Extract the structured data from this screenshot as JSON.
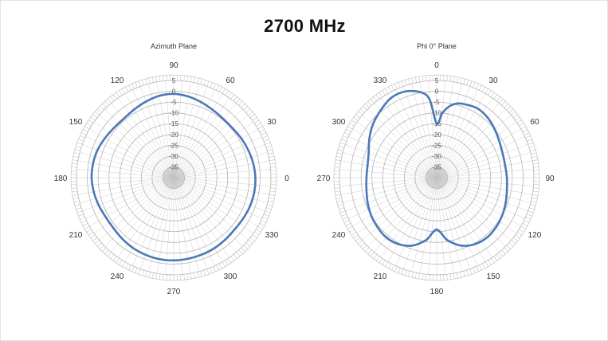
{
  "title": "2700 MHz",
  "colors": {
    "series": "#4a78b8",
    "grid_ring": "#b4b4b4",
    "grid_spoke": "#cfcfcf",
    "center_fill": "#d9d9d9"
  },
  "chart_data": [
    {
      "type": "polar-line",
      "title": "Azimuth Plane",
      "r_ticks": [
        5,
        0,
        -5,
        -10,
        -15,
        -20,
        -25,
        -30,
        -35
      ],
      "rlim": [
        -40,
        5
      ],
      "angle_labels": [
        {
          "angle": 0,
          "label": "0"
        },
        {
          "angle": 30,
          "label": "30"
        },
        {
          "angle": 60,
          "label": "60"
        },
        {
          "angle": 90,
          "label": "90"
        },
        {
          "angle": 120,
          "label": "120"
        },
        {
          "angle": 150,
          "label": "150"
        },
        {
          "angle": 180,
          "label": "180"
        },
        {
          "angle": 210,
          "label": "210"
        },
        {
          "angle": 240,
          "label": "240"
        },
        {
          "angle": 270,
          "label": "270"
        },
        {
          "angle": 300,
          "label": "300"
        },
        {
          "angle": 330,
          "label": "330"
        }
      ],
      "series": [
        {
          "angles": [
            0,
            10,
            20,
            30,
            40,
            50,
            60,
            70,
            80,
            90,
            100,
            110,
            120,
            130,
            140,
            150,
            160,
            170,
            180,
            190,
            200,
            210,
            220,
            230,
            240,
            250,
            260,
            270,
            280,
            290,
            300,
            310,
            320,
            330,
            340,
            350
          ],
          "values": [
            -2.2,
            -2.6,
            -3.2,
            -3.8,
            -4.4,
            -4.4,
            -3.8,
            -2.8,
            -1.8,
            -1.2,
            -1.5,
            -2.5,
            -3.5,
            -4.2,
            -4.0,
            -3.3,
            -2.5,
            -2.1,
            -2.0,
            -2.4,
            -3.0,
            -3.6,
            -3.6,
            -3.0,
            -2.4,
            -2.0,
            -1.7,
            -1.7,
            -1.9,
            -2.1,
            -2.3,
            -2.7,
            -3.0,
            -2.7,
            -2.3,
            -2.1
          ]
        }
      ]
    },
    {
      "type": "polar-line",
      "title": "Phi 0° Plane",
      "r_ticks": [
        5,
        0,
        -5,
        -10,
        -15,
        -20,
        -25,
        -30,
        -35
      ],
      "rlim": [
        -40,
        5
      ],
      "angle_labels": [
        {
          "angle": 0,
          "label": "0"
        },
        {
          "angle": 30,
          "label": "30"
        },
        {
          "angle": 60,
          "label": "60"
        },
        {
          "angle": 90,
          "label": "90"
        },
        {
          "angle": 120,
          "label": "120"
        },
        {
          "angle": 150,
          "label": "150"
        },
        {
          "angle": 180,
          "label": "180"
        },
        {
          "angle": 210,
          "label": "210"
        },
        {
          "angle": 240,
          "label": "240"
        },
        {
          "angle": 270,
          "label": "270"
        },
        {
          "angle": 300,
          "label": "300"
        },
        {
          "angle": 330,
          "label": "330"
        }
      ],
      "series": [
        {
          "angles": [
            0,
            5,
            10,
            15,
            20,
            30,
            40,
            50,
            60,
            70,
            80,
            90,
            100,
            110,
            120,
            130,
            140,
            150,
            160,
            170,
            175,
            180,
            185,
            190,
            200,
            210,
            220,
            230,
            240,
            250,
            260,
            270,
            280,
            290,
            300,
            310,
            320,
            330,
            340,
            350,
            355
          ],
          "values": [
            -15.0,
            -10.0,
            -6.5,
            -4.5,
            -3.7,
            -2.8,
            -3.5,
            -5.0,
            -6.5,
            -7.5,
            -7.8,
            -7.5,
            -7.0,
            -6.0,
            -5.0,
            -4.2,
            -3.8,
            -4.5,
            -6.5,
            -10.5,
            -14.0,
            -16.0,
            -14.0,
            -10.5,
            -6.5,
            -4.5,
            -3.8,
            -4.3,
            -5.0,
            -6.0,
            -7.0,
            -7.5,
            -7.5,
            -6.5,
            -4.0,
            -1.5,
            0.5,
            2.5,
            2.5,
            0.0,
            -4.0
          ]
        }
      ]
    }
  ]
}
